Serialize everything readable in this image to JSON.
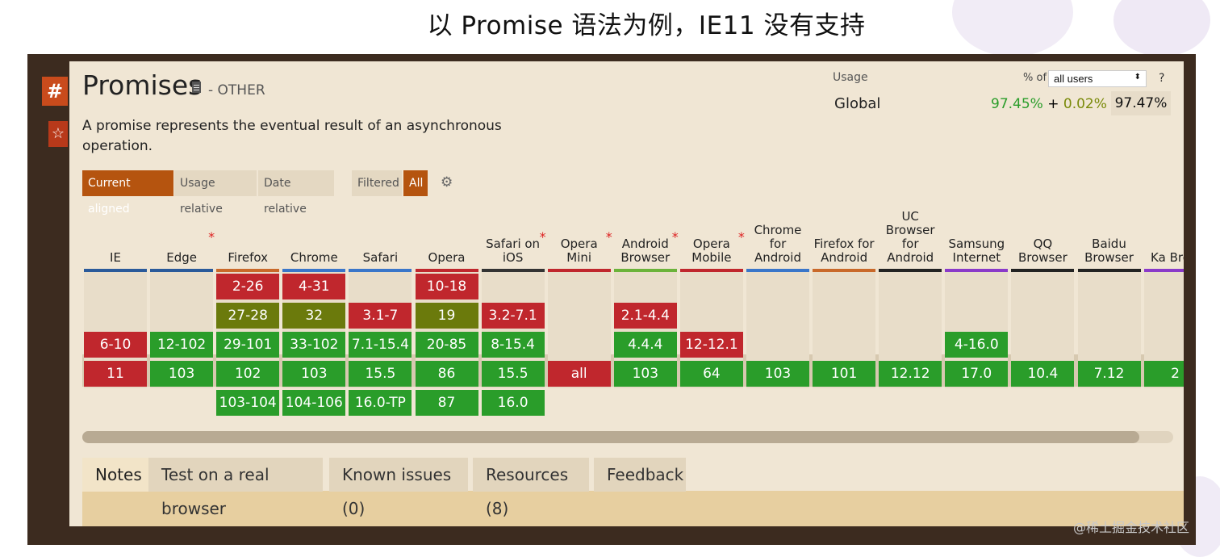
{
  "slide": {
    "title": "以 Promise 语法为例，IE11 没有支持"
  },
  "sidebar": {
    "hash": "#",
    "star": "☆"
  },
  "feature": {
    "title": "Promises",
    "category": "- OTHER",
    "description": "A promise represents the eventual result of an asynchronous operation."
  },
  "usage": {
    "label": "Usage",
    "pct_of": "% of",
    "selected": "all users",
    "help": "?",
    "region": "Global",
    "supported": "97.45%",
    "plus": "+",
    "partial": "0.02%",
    "equals": "=",
    "total": "97.47%"
  },
  "filters": {
    "current_aligned": "Current aligned",
    "usage_relative": "Usage relative",
    "date_relative": "Date relative",
    "filtered": "Filtered",
    "all": "All"
  },
  "browsers": [
    {
      "name": "IE",
      "bar": "#2a5a9a",
      "ast": false,
      "cells": [
        [
          "6-10",
          "r",
          2
        ],
        [
          "11",
          "r",
          3
        ]
      ]
    },
    {
      "name": "Edge",
      "bar": "#2a5a9a",
      "ast": true,
      "cells": [
        [
          "12-102",
          "g",
          2
        ],
        [
          "103",
          "g",
          3
        ]
      ]
    },
    {
      "name": "Firefox",
      "bar": "#c9692a",
      "ast": false,
      "cells": [
        [
          "2-26",
          "r",
          0
        ],
        [
          "27-28",
          "o",
          1
        ],
        [
          "29-101",
          "g",
          2
        ],
        [
          "102",
          "g",
          3
        ],
        [
          "103-104",
          "g",
          4
        ]
      ]
    },
    {
      "name": "Chrome",
      "bar": "#3a76c9",
      "ast": false,
      "cells": [
        [
          "4-31",
          "r",
          0
        ],
        [
          "32",
          "o",
          1
        ],
        [
          "33-102",
          "g",
          2
        ],
        [
          "103",
          "g",
          3
        ],
        [
          "104-106",
          "g",
          4
        ]
      ]
    },
    {
      "name": "Safari",
      "bar": "#3a76c9",
      "ast": false,
      "cells": [
        [
          "3.1-7",
          "r",
          1
        ],
        [
          "7.1-15.4",
          "g",
          2
        ],
        [
          "15.5",
          "g",
          3
        ],
        [
          "16.0-TP",
          "g",
          4
        ]
      ]
    },
    {
      "name": "Opera",
      "bar": "#c0272d",
      "ast": false,
      "cells": [
        [
          "10-18",
          "r",
          0
        ],
        [
          "19",
          "o",
          1
        ],
        [
          "20-85",
          "g",
          2
        ],
        [
          "86",
          "g",
          3
        ],
        [
          "87",
          "g",
          4
        ]
      ]
    },
    {
      "name": "Safari on iOS",
      "bar": "#333333",
      "ast": true,
      "cells": [
        [
          "3.2-7.1",
          "r",
          1
        ],
        [
          "8-15.4",
          "g",
          2
        ],
        [
          "15.5",
          "g",
          3
        ],
        [
          "16.0",
          "g",
          4
        ]
      ]
    },
    {
      "name": "Opera Mini",
      "bar": "#c0272d",
      "ast": true,
      "cells": [
        [
          "all",
          "r",
          3
        ]
      ]
    },
    {
      "name": "Android Browser",
      "bar": "#6bb33a",
      "ast": true,
      "cells": [
        [
          "2.1-4.4",
          "r",
          1
        ],
        [
          "4.4.4",
          "g",
          2
        ],
        [
          "103",
          "g",
          3
        ]
      ]
    },
    {
      "name": "Opera Mobile",
      "bar": "#c0272d",
      "ast": true,
      "cells": [
        [
          "12-12.1",
          "r",
          2
        ],
        [
          "64",
          "g",
          3
        ]
      ]
    },
    {
      "name": "Chrome for Android",
      "bar": "#3a76c9",
      "ast": false,
      "cells": [
        [
          "103",
          "g",
          3
        ]
      ]
    },
    {
      "name": "Firefox for Android",
      "bar": "#c9692a",
      "ast": false,
      "cells": [
        [
          "101",
          "g",
          3
        ]
      ]
    },
    {
      "name": "UC Browser for Android",
      "bar": "#222222",
      "ast": false,
      "cells": [
        [
          "12.12",
          "g",
          3
        ]
      ]
    },
    {
      "name": "Samsung Internet",
      "bar": "#8a3ac9",
      "ast": false,
      "cells": [
        [
          "4-16.0",
          "g",
          2
        ],
        [
          "17.0",
          "g",
          3
        ]
      ]
    },
    {
      "name": "QQ Browser",
      "bar": "#222222",
      "ast": false,
      "cells": [
        [
          "10.4",
          "g",
          3
        ]
      ]
    },
    {
      "name": "Baidu Browser",
      "bar": "#222222",
      "ast": false,
      "cells": [
        [
          "7.12",
          "g",
          3
        ]
      ]
    },
    {
      "name": "Ka Brow",
      "bar": "#8a3ac9",
      "ast": false,
      "cells": [
        [
          "2",
          "g",
          3
        ]
      ]
    }
  ],
  "tabs": {
    "notes": "Notes",
    "test": "Test on a real browser",
    "known": "Known issues (0)",
    "resources": "Resources (8)",
    "feedback": "Feedback"
  },
  "watermark": "@稀土掘金技术社区"
}
